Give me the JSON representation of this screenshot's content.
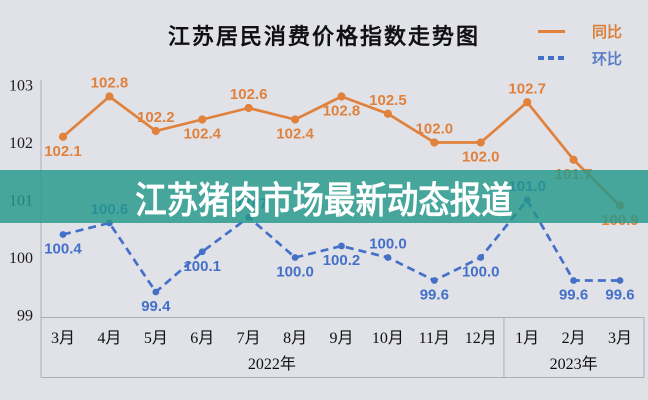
{
  "title": "江苏居民消费价格指数走势图",
  "banner": {
    "text": "江苏猪肉市场最新动态报道",
    "bg": "#23988a",
    "bg_alpha": 0.82,
    "text_color": "#ffffff"
  },
  "legend": [
    {
      "name": "同比",
      "color": "#e0813c",
      "style": "solid"
    },
    {
      "name": "环比",
      "color": "#4470c8",
      "style": "dashed"
    }
  ],
  "colors": {
    "background": "#e0e2e8",
    "axis_line": "#a9aeb9",
    "tick_text": "#1a1a1a",
    "orange": "#e0813c",
    "blue": "#4470c8"
  },
  "chart_data": {
    "type": "line",
    "title": "江苏居民消费价格指数走势图",
    "categories": [
      "3月",
      "4月",
      "5月",
      "6月",
      "7月",
      "8月",
      "9月",
      "10月",
      "11月",
      "12月",
      "1月",
      "2月",
      "3月"
    ],
    "year_groups": [
      {
        "label": "2022年",
        "from": 0,
        "to": 9
      },
      {
        "label": "2023年",
        "from": 10,
        "to": 12
      }
    ],
    "ylim": [
      99,
      103
    ],
    "yticks": [
      103,
      102,
      101,
      100,
      99
    ],
    "grid": false,
    "legend_position": "top-right",
    "series": [
      {
        "name": "同比",
        "color": "#e0813c",
        "style": "solid",
        "values": [
          102.1,
          102.8,
          102.2,
          102.4,
          102.6,
          102.4,
          102.8,
          102.5,
          102.0,
          102.0,
          102.7,
          101.7,
          100.9
        ],
        "label_pos": [
          "below",
          "above",
          "above",
          "below",
          "above",
          "below",
          "below",
          "above",
          "above",
          "below",
          "above",
          "below",
          "below"
        ]
      },
      {
        "name": "环比",
        "color": "#4470c8",
        "style": "dashed",
        "values": [
          100.4,
          100.6,
          99.4,
          100.1,
          100.7,
          100.0,
          100.2,
          100.0,
          99.6,
          100.0,
          101.0,
          99.6,
          99.6
        ],
        "label_pos": [
          "below",
          "above",
          "below",
          "below",
          "above",
          "below",
          "below",
          "above",
          "below",
          "below",
          "above",
          "below",
          "below"
        ]
      }
    ]
  }
}
